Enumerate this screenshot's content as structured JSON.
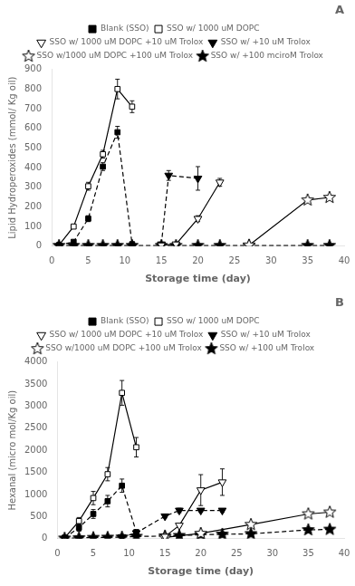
{
  "chart_data": [
    {
      "type": "line",
      "title": "A",
      "x_label": "Storage time (day)",
      "y_label": "Lipid Hydroperoxides (mmol/ Kg oil)",
      "xlim": [
        0,
        40
      ],
      "ylim": [
        0,
        900
      ],
      "xticks": [
        0,
        5,
        10,
        15,
        20,
        25,
        30,
        35,
        40
      ],
      "yticks": [
        0,
        100,
        200,
        300,
        400,
        500,
        600,
        700,
        800,
        900
      ],
      "grid": false,
      "legend": "top",
      "color": "black",
      "series": [
        {
          "name": "Blank (SSO)",
          "x": [
            1,
            3,
            5,
            7,
            9,
            11
          ],
          "values": [
            5,
            22,
            140,
            405,
            580,
            10
          ],
          "errors": [
            3,
            5,
            15,
            20,
            30,
            3
          ],
          "marker": "square",
          "line_style": "dashed"
        },
        {
          "name": "SSO w/ 1000 uM DOPC",
          "x": [
            1,
            3,
            5,
            7,
            9,
            11
          ],
          "values": [
            5,
            100,
            305,
            468,
            800,
            710
          ],
          "errors": [
            3,
            8,
            20,
            20,
            50,
            30
          ],
          "marker": "square_open",
          "line_style": "solid"
        },
        {
          "name": "SSO w/ 1000 uM DOPC +10 uM Trolox",
          "x": [
            15,
            17,
            20,
            23
          ],
          "values": [
            5,
            10,
            140,
            325
          ],
          "errors": [
            3,
            3,
            15,
            20
          ],
          "marker": "triangle_down_open",
          "line_style": "solid"
        },
        {
          "name": "SSO w/ +10 uM Trolox",
          "x": [
            15,
            16,
            20
          ],
          "values": [
            10,
            360,
            345
          ],
          "errors": [
            3,
            25,
            60
          ],
          "marker": "triangle_down",
          "line_style": "dashed"
        },
        {
          "name": "SSO w/1000 uM DOPC +100 uM Trolox",
          "x": [
            27,
            35,
            38
          ],
          "values": [
            5,
            235,
            248
          ],
          "errors": [
            2,
            12,
            12
          ],
          "marker": "star_open",
          "line_style": "solid"
        },
        {
          "name": "SSO w/ +100 mciroM Trolox",
          "x": [
            1,
            3,
            5,
            7,
            9,
            11,
            15,
            17,
            20,
            23,
            27,
            35,
            38
          ],
          "values": [
            3,
            3,
            3,
            3,
            3,
            3,
            3,
            3,
            3,
            3,
            3,
            3,
            3
          ],
          "errors": [
            1,
            1,
            1,
            1,
            1,
            1,
            1,
            1,
            1,
            1,
            1,
            1,
            1
          ],
          "marker": "star",
          "line_style": "dashed"
        }
      ]
    },
    {
      "type": "line",
      "title": "B",
      "x_label": "Storage time (day)",
      "y_label": "Hexanal (micro mol/Kg oil)",
      "xlim": [
        0,
        40
      ],
      "ylim": [
        0,
        4000
      ],
      "xticks": [
        0,
        5,
        10,
        15,
        20,
        25,
        30,
        35,
        40
      ],
      "yticks": [
        0,
        500,
        1000,
        1500,
        2000,
        2500,
        3000,
        3500,
        4000
      ],
      "grid": false,
      "legend": "top",
      "color": "black",
      "series": [
        {
          "name": "Blank (SSO)",
          "x": [
            1,
            3,
            5,
            7,
            9,
            11
          ],
          "values": [
            20,
            250,
            560,
            850,
            1200,
            150
          ],
          "errors": [
            10,
            80,
            100,
            130,
            150,
            30
          ],
          "marker": "square",
          "line_style": "dashed"
        },
        {
          "name": "SSO w/ 1000 uM DOPC",
          "x": [
            1,
            3,
            5,
            7,
            9,
            11
          ],
          "values": [
            20,
            400,
            920,
            1460,
            3300,
            2070
          ],
          "errors": [
            10,
            80,
            150,
            150,
            280,
            220
          ],
          "marker": "square_open",
          "line_style": "solid"
        },
        {
          "name": "SSO w/ 1000 uM DOPC +10 uM Trolox",
          "x": [
            15,
            17,
            20,
            23
          ],
          "values": [
            50,
            300,
            1100,
            1280
          ],
          "errors": [
            10,
            30,
            350,
            300
          ],
          "marker": "triangle_down_open",
          "line_style": "solid"
        },
        {
          "name": "SSO w/ +10 uM Trolox",
          "x": [
            9,
            11,
            15,
            17,
            20,
            23
          ],
          "values": [
            40,
            130,
            510,
            640,
            640,
            640
          ],
          "errors": [
            10,
            20,
            40,
            50,
            40,
            40
          ],
          "marker": "triangle_down",
          "line_style": "dashed"
        },
        {
          "name": "SSO w/1000 uM DOPC +100 uM Trolox",
          "x": [
            15,
            20,
            27,
            35,
            38
          ],
          "values": [
            30,
            120,
            320,
            560,
            600
          ],
          "errors": [
            8,
            15,
            40,
            45,
            45
          ],
          "marker": "star_open",
          "line_style": "solid"
        },
        {
          "name": "SSO w/ +100 uM Trolox",
          "x": [
            1,
            3,
            5,
            7,
            9,
            11,
            15,
            17,
            20,
            23,
            27,
            35,
            38
          ],
          "values": [
            10,
            20,
            25,
            30,
            35,
            50,
            60,
            70,
            90,
            100,
            110,
            200,
            210
          ],
          "errors": [
            4,
            4,
            4,
            4,
            4,
            6,
            6,
            6,
            8,
            8,
            8,
            15,
            15
          ],
          "marker": "star",
          "line_style": "dashed"
        }
      ]
    }
  ]
}
